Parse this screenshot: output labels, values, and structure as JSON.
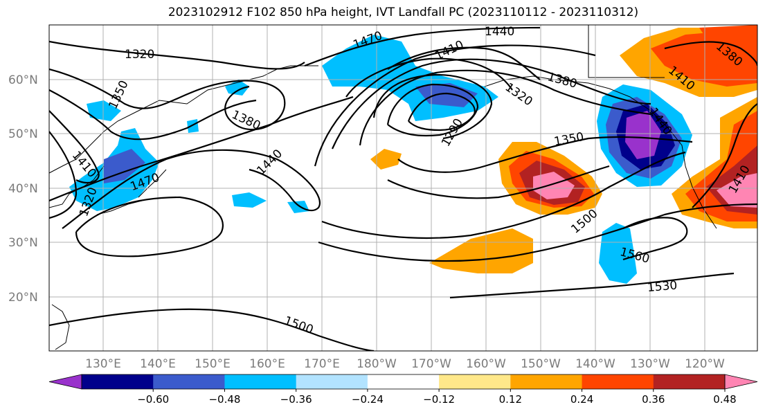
{
  "title": "2023102912 F102 850 hPa height, IVT Landfall PC (2023110112 - 2023110312)",
  "latitude_labels": [
    "60°N",
    "50°N",
    "40°N",
    "30°N",
    "20°N"
  ],
  "longitude_labels": [
    "130°E",
    "140°E",
    "150°E",
    "160°E",
    "170°E",
    "180°W",
    "170°W",
    "160°W",
    "150°W",
    "140°W",
    "130°W",
    "120°W"
  ],
  "colorbar": {
    "tick_labels": [
      "−0.60",
      "−0.48",
      "−0.36",
      "−0.24",
      "−0.12",
      "0.12",
      "0.24",
      "0.36",
      "0.48",
      "0.60"
    ],
    "colors": [
      "#9932cc",
      "#00008b",
      "#3b5bcc",
      "#00bfff",
      "#b2e3ff",
      "#ffffff",
      "#ffe88a",
      "#ffa500",
      "#ff4500",
      "#b22222",
      "#ff85b3"
    ]
  },
  "contour_labels": [
    "1320",
    "1350",
    "1380",
    "1410",
    "1440",
    "1470",
    "1470",
    "1410",
    "1440",
    "1290",
    "1320",
    "1350",
    "1380",
    "1410",
    "1380",
    "1440",
    "1500",
    "1560",
    "1530",
    "1500",
    "1320",
    "1410"
  ]
}
